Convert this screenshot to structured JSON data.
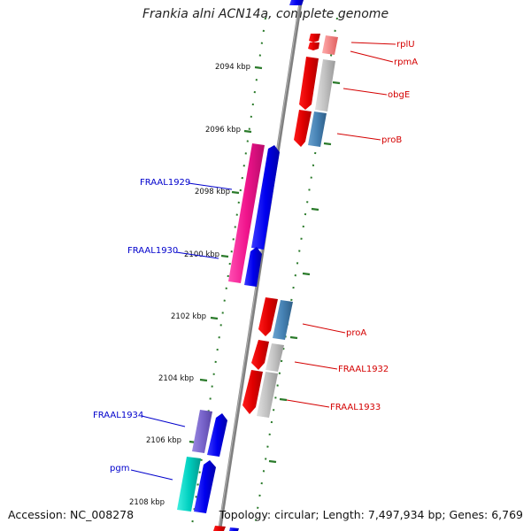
{
  "title": "Frankia alni ACN14a, complete genome",
  "accession_text": "Accession: NC_008278",
  "topology_text": "Topology: circular; Length: 7,497,934 bp; Genes: 6,769",
  "tick_labels": [
    "2094 kbp",
    "2096 kbp",
    "2098 kbp",
    "2100 kbp",
    "2102 kbp",
    "2104 kbp",
    "2106 kbp",
    "2108 kbp"
  ],
  "gene_labels_right": [
    "rplU",
    "rpmA",
    "obgE",
    "proB",
    "proA",
    "FRAAL1932",
    "FRAAL1933"
  ],
  "gene_labels_left": [
    "FRAAL1929",
    "FRAAL1930",
    "FRAAL1934",
    "pgm"
  ],
  "colors": {
    "right_label": "#d40000",
    "left_label": "#0000cc",
    "backbone": "#808080",
    "tick": "#2a7a2a"
  }
}
